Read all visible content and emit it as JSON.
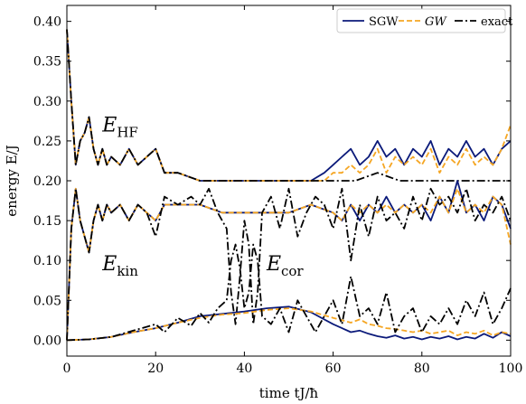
{
  "chart_data": {
    "type": "line",
    "xlabel": "time tJ/ħ",
    "ylabel": "energy E/J",
    "xlim": [
      0,
      100
    ],
    "ylim": [
      -0.02,
      0.42
    ],
    "xticks": [
      "0",
      "20",
      "40",
      "60",
      "80",
      "100"
    ],
    "yticks": [
      "0.00",
      "0.05",
      "0.10",
      "0.15",
      "0.20",
      "0.25",
      "0.30",
      "0.35",
      "0.40"
    ],
    "legend_position": "top-right",
    "annotations": [
      {
        "text": "E_HF",
        "x": 8,
        "y": 0.262
      },
      {
        "text": "E_kin",
        "x": 8,
        "y": 0.088
      },
      {
        "text": "E_cor",
        "x": 45,
        "y": 0.088
      }
    ],
    "series": [
      {
        "name": "SGW",
        "color": "#0b1a7a",
        "style": "solid",
        "group": "HF",
        "x": [
          0,
          1,
          2,
          3,
          4,
          5,
          6,
          7,
          8,
          9,
          10,
          12,
          14,
          16,
          18,
          20,
          22,
          25,
          30,
          35,
          40,
          45,
          50,
          55,
          58,
          60,
          62,
          64,
          66,
          68,
          70,
          72,
          74,
          76,
          78,
          80,
          82,
          84,
          86,
          88,
          90,
          92,
          94,
          96,
          98,
          100
        ],
        "y": [
          0.39,
          0.3,
          0.22,
          0.25,
          0.26,
          0.28,
          0.24,
          0.22,
          0.24,
          0.22,
          0.23,
          0.22,
          0.24,
          0.22,
          0.23,
          0.24,
          0.21,
          0.21,
          0.2,
          0.2,
          0.2,
          0.2,
          0.2,
          0.2,
          0.21,
          0.22,
          0.23,
          0.24,
          0.22,
          0.23,
          0.25,
          0.23,
          0.24,
          0.22,
          0.24,
          0.23,
          0.25,
          0.22,
          0.24,
          0.23,
          0.25,
          0.23,
          0.24,
          0.22,
          0.24,
          0.25
        ]
      },
      {
        "name": "GW",
        "color": "#f5a623",
        "style": "dashed",
        "group": "HF",
        "x": [
          0,
          1,
          2,
          3,
          4,
          5,
          6,
          7,
          8,
          9,
          10,
          12,
          14,
          16,
          18,
          20,
          22,
          25,
          30,
          35,
          40,
          45,
          50,
          55,
          58,
          60,
          62,
          64,
          66,
          68,
          70,
          72,
          74,
          76,
          78,
          80,
          82,
          84,
          86,
          88,
          90,
          92,
          94,
          96,
          98,
          100
        ],
        "y": [
          0.39,
          0.3,
          0.22,
          0.25,
          0.26,
          0.28,
          0.24,
          0.22,
          0.24,
          0.22,
          0.23,
          0.22,
          0.24,
          0.22,
          0.23,
          0.24,
          0.21,
          0.21,
          0.2,
          0.2,
          0.2,
          0.2,
          0.2,
          0.2,
          0.2,
          0.21,
          0.21,
          0.22,
          0.21,
          0.22,
          0.24,
          0.21,
          0.23,
          0.22,
          0.23,
          0.22,
          0.24,
          0.21,
          0.23,
          0.22,
          0.24,
          0.22,
          0.23,
          0.22,
          0.24,
          0.27
        ]
      },
      {
        "name": "exact",
        "color": "#000000",
        "style": "dashdot",
        "group": "HF",
        "x": [
          0,
          1,
          2,
          3,
          4,
          5,
          6,
          7,
          8,
          9,
          10,
          12,
          14,
          16,
          18,
          20,
          22,
          25,
          30,
          35,
          40,
          45,
          50,
          55,
          60,
          65,
          70,
          75,
          80,
          85,
          90,
          95,
          100
        ],
        "y": [
          0.39,
          0.3,
          0.22,
          0.25,
          0.26,
          0.28,
          0.24,
          0.22,
          0.24,
          0.22,
          0.23,
          0.22,
          0.24,
          0.22,
          0.23,
          0.24,
          0.21,
          0.21,
          0.2,
          0.2,
          0.2,
          0.2,
          0.2,
          0.2,
          0.2,
          0.2,
          0.21,
          0.2,
          0.2,
          0.2,
          0.2,
          0.2,
          0.2
        ]
      },
      {
        "name": "SGW",
        "color": "#0b1a7a",
        "style": "solid",
        "group": "kin",
        "x": [
          0,
          1,
          2,
          3,
          4,
          5,
          6,
          7,
          8,
          9,
          10,
          12,
          14,
          16,
          18,
          20,
          22,
          25,
          30,
          35,
          40,
          45,
          50,
          55,
          60,
          62,
          64,
          66,
          68,
          70,
          72,
          74,
          76,
          78,
          80,
          82,
          84,
          86,
          88,
          90,
          92,
          94,
          96,
          98,
          100
        ],
        "y": [
          0.0,
          0.14,
          0.19,
          0.15,
          0.13,
          0.11,
          0.15,
          0.17,
          0.15,
          0.17,
          0.16,
          0.17,
          0.15,
          0.17,
          0.16,
          0.15,
          0.17,
          0.17,
          0.17,
          0.16,
          0.16,
          0.16,
          0.16,
          0.17,
          0.16,
          0.15,
          0.17,
          0.15,
          0.17,
          0.16,
          0.18,
          0.16,
          0.17,
          0.16,
          0.17,
          0.15,
          0.18,
          0.16,
          0.2,
          0.16,
          0.17,
          0.15,
          0.18,
          0.17,
          0.14
        ]
      },
      {
        "name": "GW",
        "color": "#f5a623",
        "style": "dashed",
        "group": "kin",
        "x": [
          0,
          1,
          2,
          3,
          4,
          5,
          6,
          7,
          8,
          9,
          10,
          12,
          14,
          16,
          18,
          20,
          22,
          25,
          30,
          35,
          40,
          45,
          50,
          55,
          60,
          62,
          64,
          66,
          68,
          70,
          72,
          74,
          76,
          78,
          80,
          82,
          84,
          86,
          88,
          90,
          92,
          94,
          96,
          98,
          100
        ],
        "y": [
          0.0,
          0.14,
          0.19,
          0.15,
          0.13,
          0.11,
          0.15,
          0.17,
          0.15,
          0.17,
          0.16,
          0.17,
          0.15,
          0.17,
          0.16,
          0.15,
          0.17,
          0.17,
          0.17,
          0.16,
          0.16,
          0.16,
          0.16,
          0.17,
          0.16,
          0.15,
          0.17,
          0.16,
          0.17,
          0.16,
          0.17,
          0.16,
          0.17,
          0.16,
          0.17,
          0.16,
          0.18,
          0.16,
          0.19,
          0.16,
          0.17,
          0.16,
          0.18,
          0.17,
          0.12
        ]
      },
      {
        "name": "exact",
        "color": "#000000",
        "style": "dashdot",
        "group": "kin",
        "x": [
          0,
          1,
          2,
          3,
          4,
          5,
          6,
          7,
          8,
          9,
          10,
          12,
          14,
          16,
          18,
          20,
          22,
          25,
          28,
          30,
          32,
          34,
          36,
          37,
          38,
          39,
          40,
          41,
          42,
          43,
          44,
          46,
          48,
          50,
          52,
          54,
          56,
          58,
          60,
          62,
          64,
          66,
          68,
          70,
          72,
          74,
          76,
          78,
          80,
          82,
          84,
          86,
          88,
          90,
          92,
          94,
          96,
          98,
          100
        ],
        "y": [
          0.0,
          0.14,
          0.19,
          0.15,
          0.13,
          0.11,
          0.15,
          0.17,
          0.15,
          0.17,
          0.16,
          0.17,
          0.15,
          0.17,
          0.16,
          0.13,
          0.18,
          0.17,
          0.18,
          0.17,
          0.19,
          0.16,
          0.14,
          0.06,
          0.02,
          0.08,
          0.15,
          0.12,
          0.02,
          0.06,
          0.16,
          0.18,
          0.14,
          0.19,
          0.13,
          0.16,
          0.18,
          0.17,
          0.14,
          0.19,
          0.1,
          0.17,
          0.13,
          0.18,
          0.15,
          0.16,
          0.14,
          0.18,
          0.15,
          0.19,
          0.17,
          0.18,
          0.16,
          0.19,
          0.15,
          0.17,
          0.16,
          0.18,
          0.15
        ]
      },
      {
        "name": "SGW",
        "color": "#0b1a7a",
        "style": "solid",
        "group": "cor",
        "x": [
          0,
          5,
          10,
          15,
          20,
          25,
          30,
          35,
          40,
          45,
          50,
          55,
          60,
          62,
          64,
          66,
          68,
          70,
          72,
          74,
          76,
          78,
          80,
          82,
          84,
          86,
          88,
          90,
          92,
          94,
          96,
          98,
          100
        ],
        "y": [
          0.0,
          0.001,
          0.004,
          0.01,
          0.015,
          0.022,
          0.03,
          0.033,
          0.036,
          0.04,
          0.042,
          0.035,
          0.02,
          0.015,
          0.01,
          0.012,
          0.008,
          0.005,
          0.003,
          0.006,
          0.002,
          0.004,
          0.001,
          0.004,
          0.002,
          0.005,
          0.001,
          0.004,
          0.002,
          0.008,
          0.003,
          0.01,
          0.005
        ]
      },
      {
        "name": "GW",
        "color": "#f5a623",
        "style": "dashed",
        "group": "cor",
        "x": [
          0,
          5,
          10,
          15,
          20,
          25,
          30,
          35,
          40,
          45,
          50,
          55,
          60,
          62,
          64,
          66,
          68,
          70,
          72,
          74,
          76,
          78,
          80,
          82,
          84,
          86,
          88,
          90,
          92,
          94,
          96,
          98,
          100
        ],
        "y": [
          0.0,
          0.001,
          0.004,
          0.01,
          0.015,
          0.022,
          0.028,
          0.032,
          0.034,
          0.038,
          0.04,
          0.036,
          0.028,
          0.025,
          0.022,
          0.026,
          0.02,
          0.018,
          0.015,
          0.014,
          0.012,
          0.01,
          0.012,
          0.008,
          0.01,
          0.012,
          0.006,
          0.01,
          0.008,
          0.012,
          0.006,
          0.01,
          0.008
        ]
      },
      {
        "name": "exact",
        "color": "#000000",
        "style": "dashdot",
        "group": "cor",
        "x": [
          0,
          5,
          10,
          15,
          20,
          22,
          25,
          28,
          30,
          32,
          34,
          36,
          37,
          38,
          39,
          40,
          41,
          42,
          43,
          44,
          46,
          48,
          50,
          52,
          54,
          56,
          58,
          60,
          62,
          64,
          66,
          68,
          70,
          72,
          74,
          76,
          78,
          80,
          82,
          84,
          86,
          88,
          90,
          92,
          94,
          96,
          98,
          100
        ],
        "y": [
          0.0,
          0.001,
          0.004,
          0.012,
          0.02,
          0.01,
          0.028,
          0.018,
          0.034,
          0.022,
          0.04,
          0.05,
          0.1,
          0.12,
          0.09,
          0.04,
          0.06,
          0.12,
          0.1,
          0.03,
          0.02,
          0.04,
          0.01,
          0.05,
          0.03,
          0.01,
          0.03,
          0.05,
          0.02,
          0.08,
          0.03,
          0.04,
          0.02,
          0.06,
          0.01,
          0.03,
          0.04,
          0.01,
          0.03,
          0.02,
          0.04,
          0.02,
          0.05,
          0.03,
          0.06,
          0.02,
          0.04,
          0.065
        ]
      }
    ]
  },
  "legend": [
    {
      "label": "SGW",
      "color": "#0b1a7a",
      "style": "solid"
    },
    {
      "label": "GW",
      "color": "#f5a623",
      "style": "dashed"
    },
    {
      "label": "exact",
      "color": "#000000",
      "style": "dashdot"
    }
  ]
}
